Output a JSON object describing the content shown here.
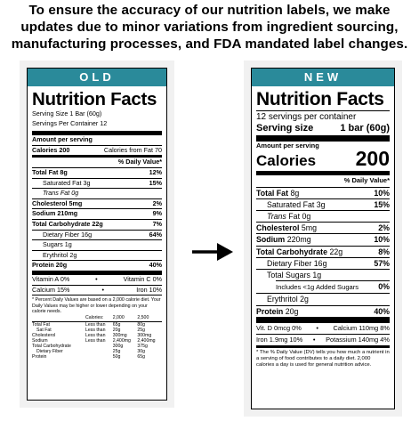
{
  "header": {
    "text": "To ensure the accuracy of our nutrition labels, we make updates due to minor variations from ingredient sourcing, manufacturing processes, and FDA mandated label changes."
  },
  "old_label": {
    "tab": "OLD",
    "title": "Nutrition Facts",
    "serving_size": "Serving Size 1 Bar (60g)",
    "servings_per_container": "Servings Per Container 12",
    "amount_per_serving": "Amount per serving",
    "calories": "Calories 200",
    "calories_from_fat": "Calories from Fat 70",
    "daily_value_heading": "% Daily Value*",
    "nutrients": [
      {
        "name": "Total Fat 8g",
        "dv": "12%"
      },
      {
        "name": "Saturated Fat 3g",
        "dv": "15%"
      },
      {
        "name": "Trans Fat 0g",
        "dv": ""
      },
      {
        "name": "Cholesterol 5mg",
        "dv": "2%"
      },
      {
        "name": "Sodium 210mg",
        "dv": "9%"
      },
      {
        "name": "Total Carbohydrate 22g",
        "dv": "7%"
      },
      {
        "name": "Dietary Fiber 16g",
        "dv": "64%"
      },
      {
        "name": "Sugars 1g",
        "dv": ""
      },
      {
        "name": "Erythritol 2g",
        "dv": ""
      },
      {
        "name": "Protein 20g",
        "dv": "40%"
      }
    ],
    "vitamins": [
      {
        "left": "Vitamin A 0%",
        "right": "Vitamin C 0%"
      },
      {
        "left": "Calcium 15%",
        "right": "Iron 10%"
      }
    ],
    "footnote": "* Percent Daily Values are based on a 2,000 calorie diet. Your Daily Values may be higher or lower depending on your calorie needs.",
    "dv_table": {
      "header": [
        "",
        "Calories:",
        "2,000",
        "2,500"
      ],
      "rows": [
        [
          "Total Fat",
          "Less than",
          "65g",
          "80g"
        ],
        [
          "Sat Fat",
          "Less than",
          "20g",
          "25g"
        ],
        [
          "Cholesterol",
          "Less than",
          "300mg",
          "300mg"
        ],
        [
          "Sodium",
          "Less than",
          "2,400mg",
          "2,400mg"
        ],
        [
          "Total Carbohydrate",
          "",
          "300g",
          "375g"
        ],
        [
          "Dietary Fiber",
          "",
          "25g",
          "30g"
        ],
        [
          "Protein",
          "",
          "50g",
          "65g"
        ]
      ]
    }
  },
  "new_label": {
    "tab": "NEW",
    "title": "Nutrition Facts",
    "servings_per_container": "12 servings per container",
    "serving_size_label": "Serving size",
    "serving_size_value": "1 bar (60g)",
    "amount_per_serving": "Amount per serving",
    "calories_label": "Calories",
    "calories_value": "200",
    "daily_value_heading": "% Daily Value*",
    "total_fat": {
      "label": "Total Fat",
      "amount": "8g",
      "dv": "10%"
    },
    "saturated_fat": {
      "label": "Saturated Fat 3g",
      "dv": "15%"
    },
    "trans_fat": {
      "label": "Trans",
      "rest": "Fat 0g"
    },
    "cholesterol": {
      "label": "Cholesterol",
      "amount": "5mg",
      "dv": "2%"
    },
    "sodium": {
      "label": "Sodium",
      "amount": "220mg",
      "dv": "10%"
    },
    "total_carb": {
      "label": "Total Carbohydrate",
      "amount": "22g",
      "dv": "8%"
    },
    "fiber": {
      "label": "Dietary Fiber 16g",
      "dv": "57%"
    },
    "total_sugars": {
      "label": "Total Sugars 1g"
    },
    "added_sugars": {
      "label": "Includes <1g Added Sugars",
      "dv": "0%"
    },
    "erythritol": {
      "label": "Erythritol 2g"
    },
    "protein": {
      "label": "Protein",
      "amount": "20g",
      "dv": "40%"
    },
    "minerals": [
      {
        "left": "Vit. D 0mcg 0%",
        "right": "Calcium 110mg 8%"
      },
      {
        "left": "Iron 1.9mg 10%",
        "right": "Potassium 140mg 4%"
      }
    ],
    "footnote": "* The % Daily Value (DV) tells you how much a nutrient in a serving of food contributes to a daily diet. 2,000 calories a day is used for general nutrition advice."
  }
}
